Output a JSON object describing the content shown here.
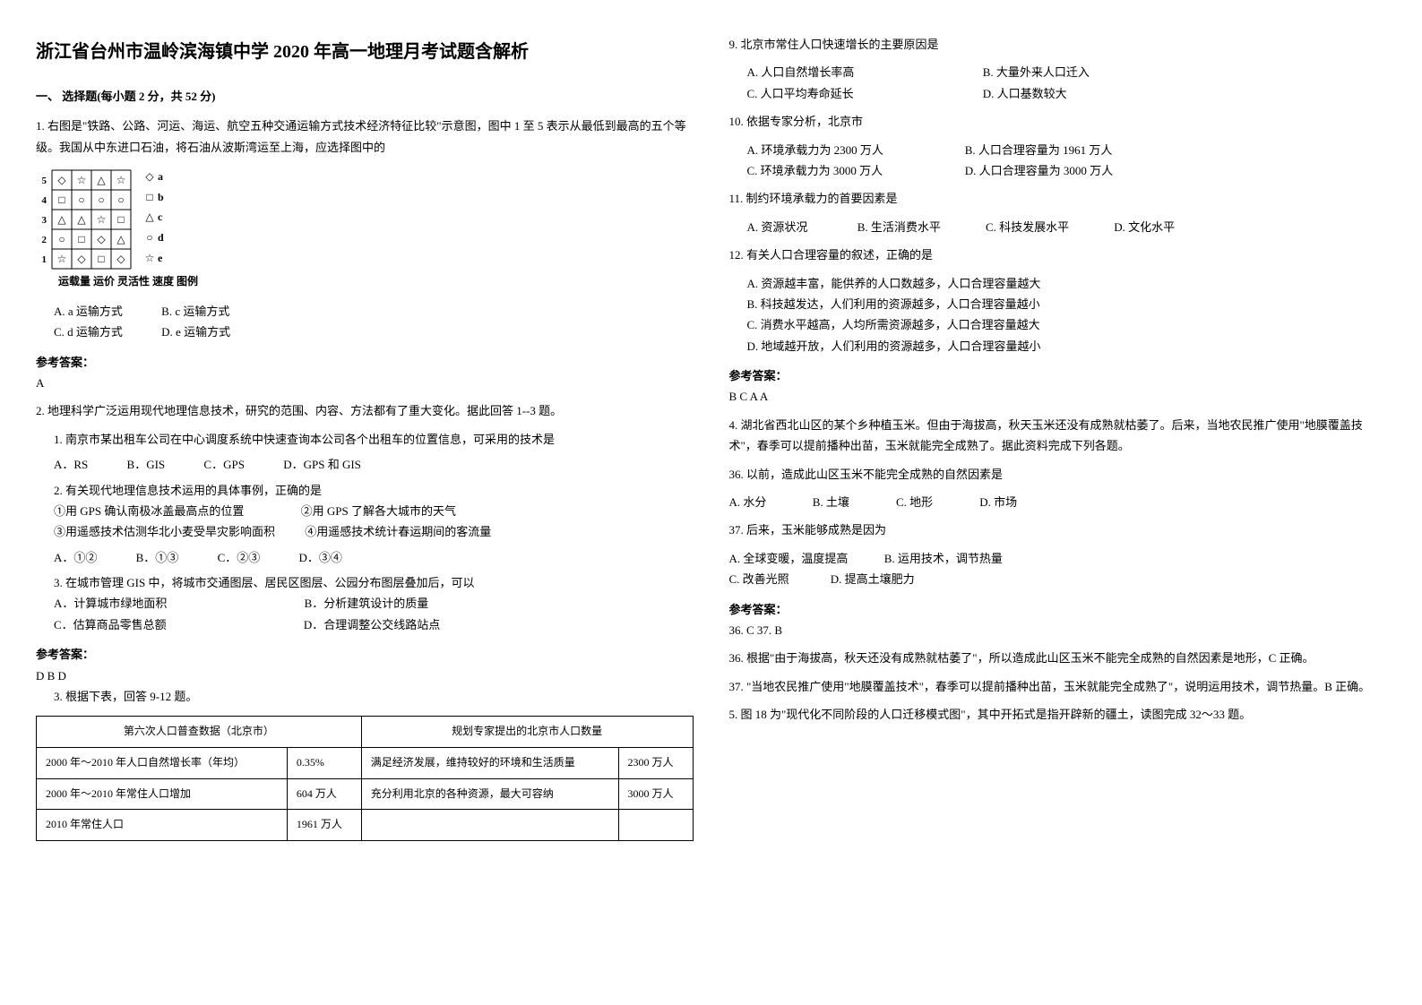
{
  "title": "浙江省台州市温岭滨海镇中学 2020 年高一地理月考试题含解析",
  "section1_title": "一、 选择题(每小题 2 分，共 52 分)",
  "q1": {
    "text": "1. 右图是\"铁路、公路、河运、海运、航空五种交通运输方式技术经济特征比较\"示意图，图中 1 至 5 表示从最低到最高的五个等级。我国从中东进口石油，将石油从波斯湾运至上海，应选择图中的",
    "chart": {
      "y_labels": [
        "5",
        "4",
        "3",
        "2",
        "1"
      ],
      "x_labels": [
        "运载量",
        "运价",
        "灵活性",
        "速度"
      ],
      "legend_label": "图例",
      "legend": [
        {
          "symbol": "◇",
          "label": "a"
        },
        {
          "symbol": "□",
          "label": "b"
        },
        {
          "symbol": "△",
          "label": "c"
        },
        {
          "symbol": "○",
          "label": "d"
        },
        {
          "symbol": "☆",
          "label": "e"
        }
      ],
      "grid_color": "#000",
      "font_size": 11,
      "cell": 22,
      "cols": 4,
      "rows": 5,
      "markers": [
        [
          "◇",
          "☆",
          "△",
          "☆"
        ],
        [
          "□",
          "○",
          "○",
          "○"
        ],
        [
          "△",
          "△",
          "☆",
          "□"
        ],
        [
          "○",
          "□",
          "◇",
          "△"
        ],
        [
          "☆",
          "◇",
          "□",
          "◇"
        ]
      ]
    },
    "opts": {
      "a": "A. a 运输方式",
      "b": "B. c 运输方式",
      "c": "C. d 运输方式",
      "d": "D. e 运输方式"
    }
  },
  "ans1_label": "参考答案：",
  "ans1": "A",
  "q2_intro": "2. 地理科学广泛运用现代地理信息技术，研究的范围、内容、方法都有了重大变化。据此回答 1--3 题。",
  "q2_1": "1. 南京市某出租车公司在中心调度系统中快速查询本公司各个出租车的位置信息，可采用的技术是",
  "q2_1_opts": {
    "a": "A．RS",
    "b": "B．GIS",
    "c": "C．GPS",
    "d": "D．GPS 和 GIS"
  },
  "q2_2": "2. 有关现代地理信息技术运用的具体事例，正确的是",
  "q2_2_items": {
    "i1": "①用 GPS 确认南极冰盖最高点的位置",
    "i2": "②用 GPS 了解各大城市的天气",
    "i3": "③用遥感技术估测华北小麦受旱灾影响面积",
    "i4": "④用遥感技术统计春运期间的客流量"
  },
  "q2_2_opts": {
    "a": "A．①②",
    "b": "B．①③",
    "c": "C．②③",
    "d": "D．③④"
  },
  "q2_3": "3. 在城市管理 GIS 中，将城市交通图层、居民区图层、公园分布图层叠加后，可以",
  "q2_3_opts": {
    "a": "A．计算城市绿地面积",
    "b": "B．分析建筑设计的质量",
    "c": "C．估算商品零售总额",
    "d": "D．合理调整公交线路站点"
  },
  "ans2_label": "参考答案：",
  "ans2": "D  B  D",
  "q3_intro": "3. 根据下表，回答 9-12 题。",
  "table": {
    "header1": "第六次人口普查数据（北京市）",
    "header2": "规划专家提出的北京市人口数量",
    "rows": [
      [
        "2000 年～2010 年人口自然增长率（年均）",
        "0.35%",
        "满足经济发展，维持较好的环境和生活质量",
        "2300 万人"
      ],
      [
        "2000 年～2010 年常住人口增加",
        "604 万人",
        "充分利用北京的各种资源，最大可容纳",
        "3000 万人"
      ],
      [
        "2010 年常住人口",
        "1961 万人",
        "",
        ""
      ]
    ]
  },
  "q9": "9. 北京市常住人口快速增长的主要原因是",
  "q9_opts": {
    "a": "A. 人口自然增长率高",
    "b": "B. 大量外来人口迁入",
    "c": "C. 人口平均寿命延长",
    "d": "D. 人口基数较大"
  },
  "q10": "10. 依据专家分析，北京市",
  "q10_opts": {
    "a": "A. 环境承载力为 2300 万人",
    "b": "B. 人口合理容量为 1961 万人",
    "c": "C. 环境承载力为 3000 万人",
    "d": "D. 人口合理容量为 3000 万人"
  },
  "q11": "11. 制约环境承载力的首要因素是",
  "q11_opts": {
    "a": "A. 资源状况",
    "b": "B. 生活消费水平",
    "c": "C. 科技发展水平",
    "d": "D. 文化水平"
  },
  "q12": "12. 有关人口合理容量的叙述，正确的是",
  "q12_opts": {
    "a": "A. 资源越丰富，能供养的人口数越多，人口合理容量越大",
    "b": "B. 科技越发达，人们利用的资源越多，人口合理容量越小",
    "c": "C. 消费水平越高，人均所需资源越多，人口合理容量越大",
    "d": "D. 地域越开放，人们利用的资源越多，人口合理容量越小"
  },
  "ans3_label": "参考答案：",
  "ans3": "B  C  A  A",
  "q4_intro": "4. 湖北省西北山区的某个乡种植玉米。但由于海拔高，秋天玉米还没有成熟就枯萎了。后来，当地农民推广使用\"地膜覆盖技术\"，春季可以提前播种出苗，玉米就能完全成熟了。据此资料完成下列各题。",
  "q36": "36. 以前，造成此山区玉米不能完全成熟的自然因素是",
  "q36_opts": {
    "a": "A. 水分",
    "b": "B. 土壤",
    "c": "C. 地形",
    "d": "D. 市场"
  },
  "q37": "37. 后来，玉米能够成熟是因为",
  "q37_opts": {
    "a": "A. 全球变暖，温度提高",
    "b": "B. 运用技术，调节热量",
    "c": "C. 改善光照",
    "d": "D. 提高土壤肥力"
  },
  "ans4_label": "参考答案：",
  "ans4_1": "36. C        37. B",
  "ans4_exp1": "36. 根据\"由于海拔高，秋天还没有成熟就枯萎了\"，所以造成此山区玉米不能完全成熟的自然因素是地形，C 正确。",
  "ans4_exp2": "37. \"当地农民推广使用\"地膜覆盖技术\"，春季可以提前播种出苗，玉米就能完全成熟了\"，说明运用技术，调节热量。B 正确。",
  "q5": "5. 图 18 为\"现代化不同阶段的人口迁移模式图\"，其中开拓式是指开辟新的疆土，读图完成 32～33 题。"
}
